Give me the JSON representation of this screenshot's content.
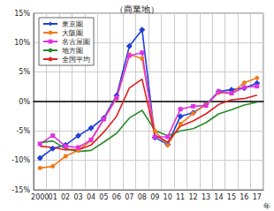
{
  "chart_data": {
    "type": "line",
    "title": "（商業地）",
    "xlabel": "年",
    "categories": [
      "2000",
      "01",
      "02",
      "03",
      "04",
      "05",
      "06",
      "07",
      "08",
      "09",
      "10",
      "11",
      "12",
      "13",
      "14",
      "15",
      "16",
      "17"
    ],
    "series": [
      {
        "name": "東京圏",
        "color": "#1f3fd6",
        "marker": "diamond",
        "values": [
          -9.6,
          -8.0,
          -7.4,
          -5.8,
          -4.5,
          -2.8,
          1.0,
          9.4,
          12.2,
          -6.1,
          -7.3,
          -2.5,
          -1.9,
          -0.5,
          1.7,
          2.0,
          2.3,
          3.1
        ]
      },
      {
        "name": "大阪圏",
        "color": "#f07a1a",
        "marker": "circle",
        "values": [
          -11.3,
          -11.0,
          -9.3,
          -8.3,
          -6.6,
          -3.0,
          0.5,
          8.0,
          7.3,
          -5.0,
          -7.4,
          -3.8,
          -2.0,
          -0.5,
          1.5,
          1.4,
          3.2,
          4.0
        ]
      },
      {
        "name": "名古屋圏",
        "color": "#e033e0",
        "marker": "rect",
        "values": [
          -7.2,
          -5.8,
          -7.6,
          -7.8,
          -6.5,
          -3.0,
          0.7,
          7.8,
          8.3,
          -6.0,
          -6.0,
          -1.3,
          -0.8,
          -0.7,
          1.7,
          1.4,
          2.4,
          2.6
        ]
      },
      {
        "name": "地方圏",
        "color": "#2a8a2a",
        "marker": "none",
        "values": [
          -7.0,
          -6.7,
          -8.0,
          -8.5,
          -8.3,
          -6.9,
          -5.4,
          -2.8,
          -1.5,
          -4.9,
          -5.8,
          -5.0,
          -4.6,
          -3.6,
          -2.1,
          -1.4,
          -0.6,
          -0.1
        ]
      },
      {
        "name": "全国平均",
        "color": "#e02020",
        "marker": "none",
        "values": [
          -7.6,
          -7.8,
          -8.2,
          -8.2,
          -7.4,
          -5.2,
          -2.5,
          2.3,
          3.8,
          -5.7,
          -6.9,
          -4.2,
          -3.3,
          -2.1,
          -0.5,
          0.3,
          0.5,
          1.1
        ]
      }
    ],
    "ylim": [
      -15,
      15
    ],
    "yticks": [
      {
        "value": -15,
        "label": "-15%"
      },
      {
        "value": -10,
        "label": "-10%"
      },
      {
        "value": -5,
        "label": "-5%"
      },
      {
        "value": 0,
        "label": "0%"
      },
      {
        "value": 5,
        "label": "5%"
      },
      {
        "value": 10,
        "label": "10%"
      },
      {
        "value": 15,
        "label": "15%"
      }
    ],
    "grid": true,
    "legend": "top-left"
  }
}
